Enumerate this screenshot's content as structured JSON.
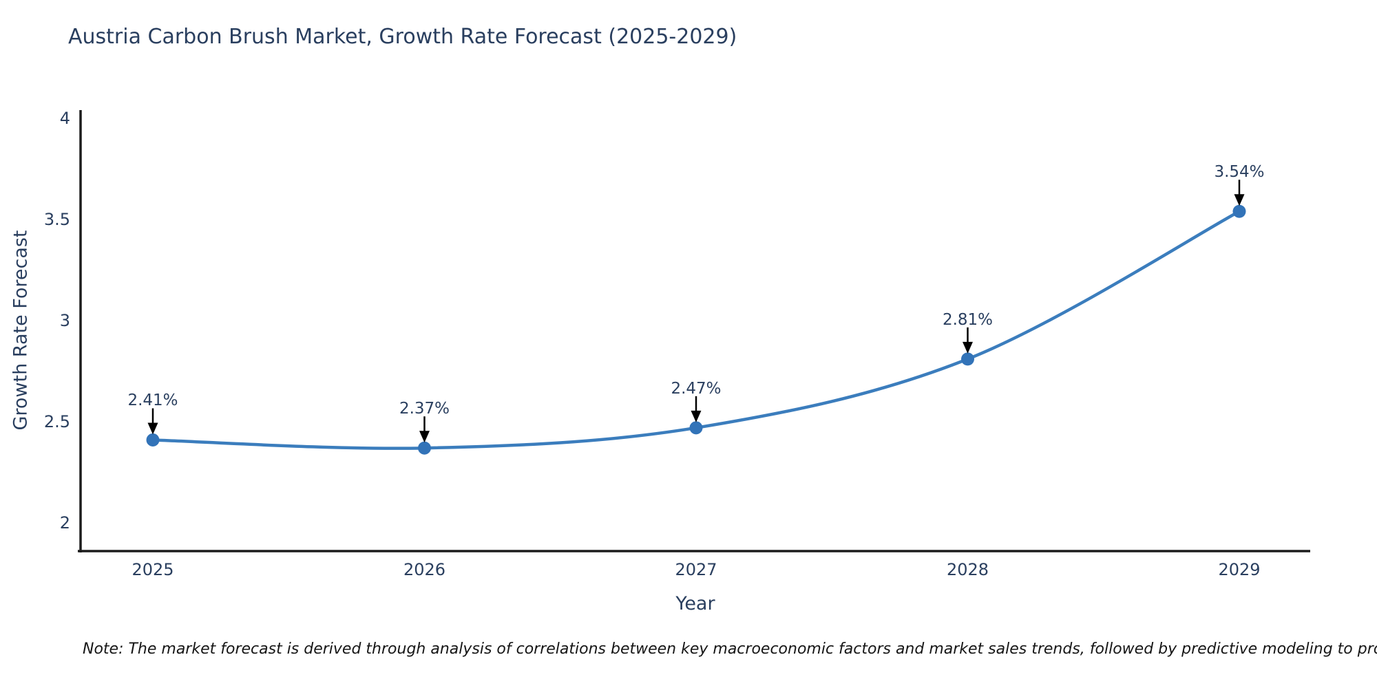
{
  "title": "Austria Carbon Brush Market, Growth Rate Forecast (2025-2029)",
  "note": "Note: The market forecast is derived through analysis of correlations between key macroeconomic factors and market sales trends, followed by predictive modeling to project future sales",
  "colors": {
    "title_text": "#2a3f5f",
    "axis_line": "#1c1c1c",
    "tick_text": "#2a3f5f",
    "line": "#3b7dbd",
    "marker": "#3273b8",
    "annotation_arrow": "#000000",
    "note_text": "#161616",
    "background": "#ffffff"
  },
  "chart_data": {
    "type": "line",
    "title": "Austria Carbon Brush Market, Growth Rate Forecast (2025-2029)",
    "xlabel": "Year",
    "ylabel": "Growth Rate Forecast",
    "x": [
      2025,
      2026,
      2027,
      2028,
      2029
    ],
    "xtick_labels": [
      "2025",
      "2026",
      "2027",
      "2028",
      "2029"
    ],
    "series": [
      {
        "name": "Growth Rate Forecast",
        "values": [
          2.41,
          2.37,
          2.47,
          2.81,
          3.54
        ]
      }
    ],
    "data_labels": [
      "2.41%",
      "2.37%",
      "2.47%",
      "2.81%",
      "3.54%"
    ],
    "yticks": [
      "2",
      "2.5",
      "3",
      "3.5",
      "4"
    ],
    "ylim": [
      1.86,
      4.04
    ],
    "grid": false,
    "legend": "none",
    "line_shape": "spline",
    "markers": true,
    "annotations_style": "value above point with downward black arrow"
  }
}
